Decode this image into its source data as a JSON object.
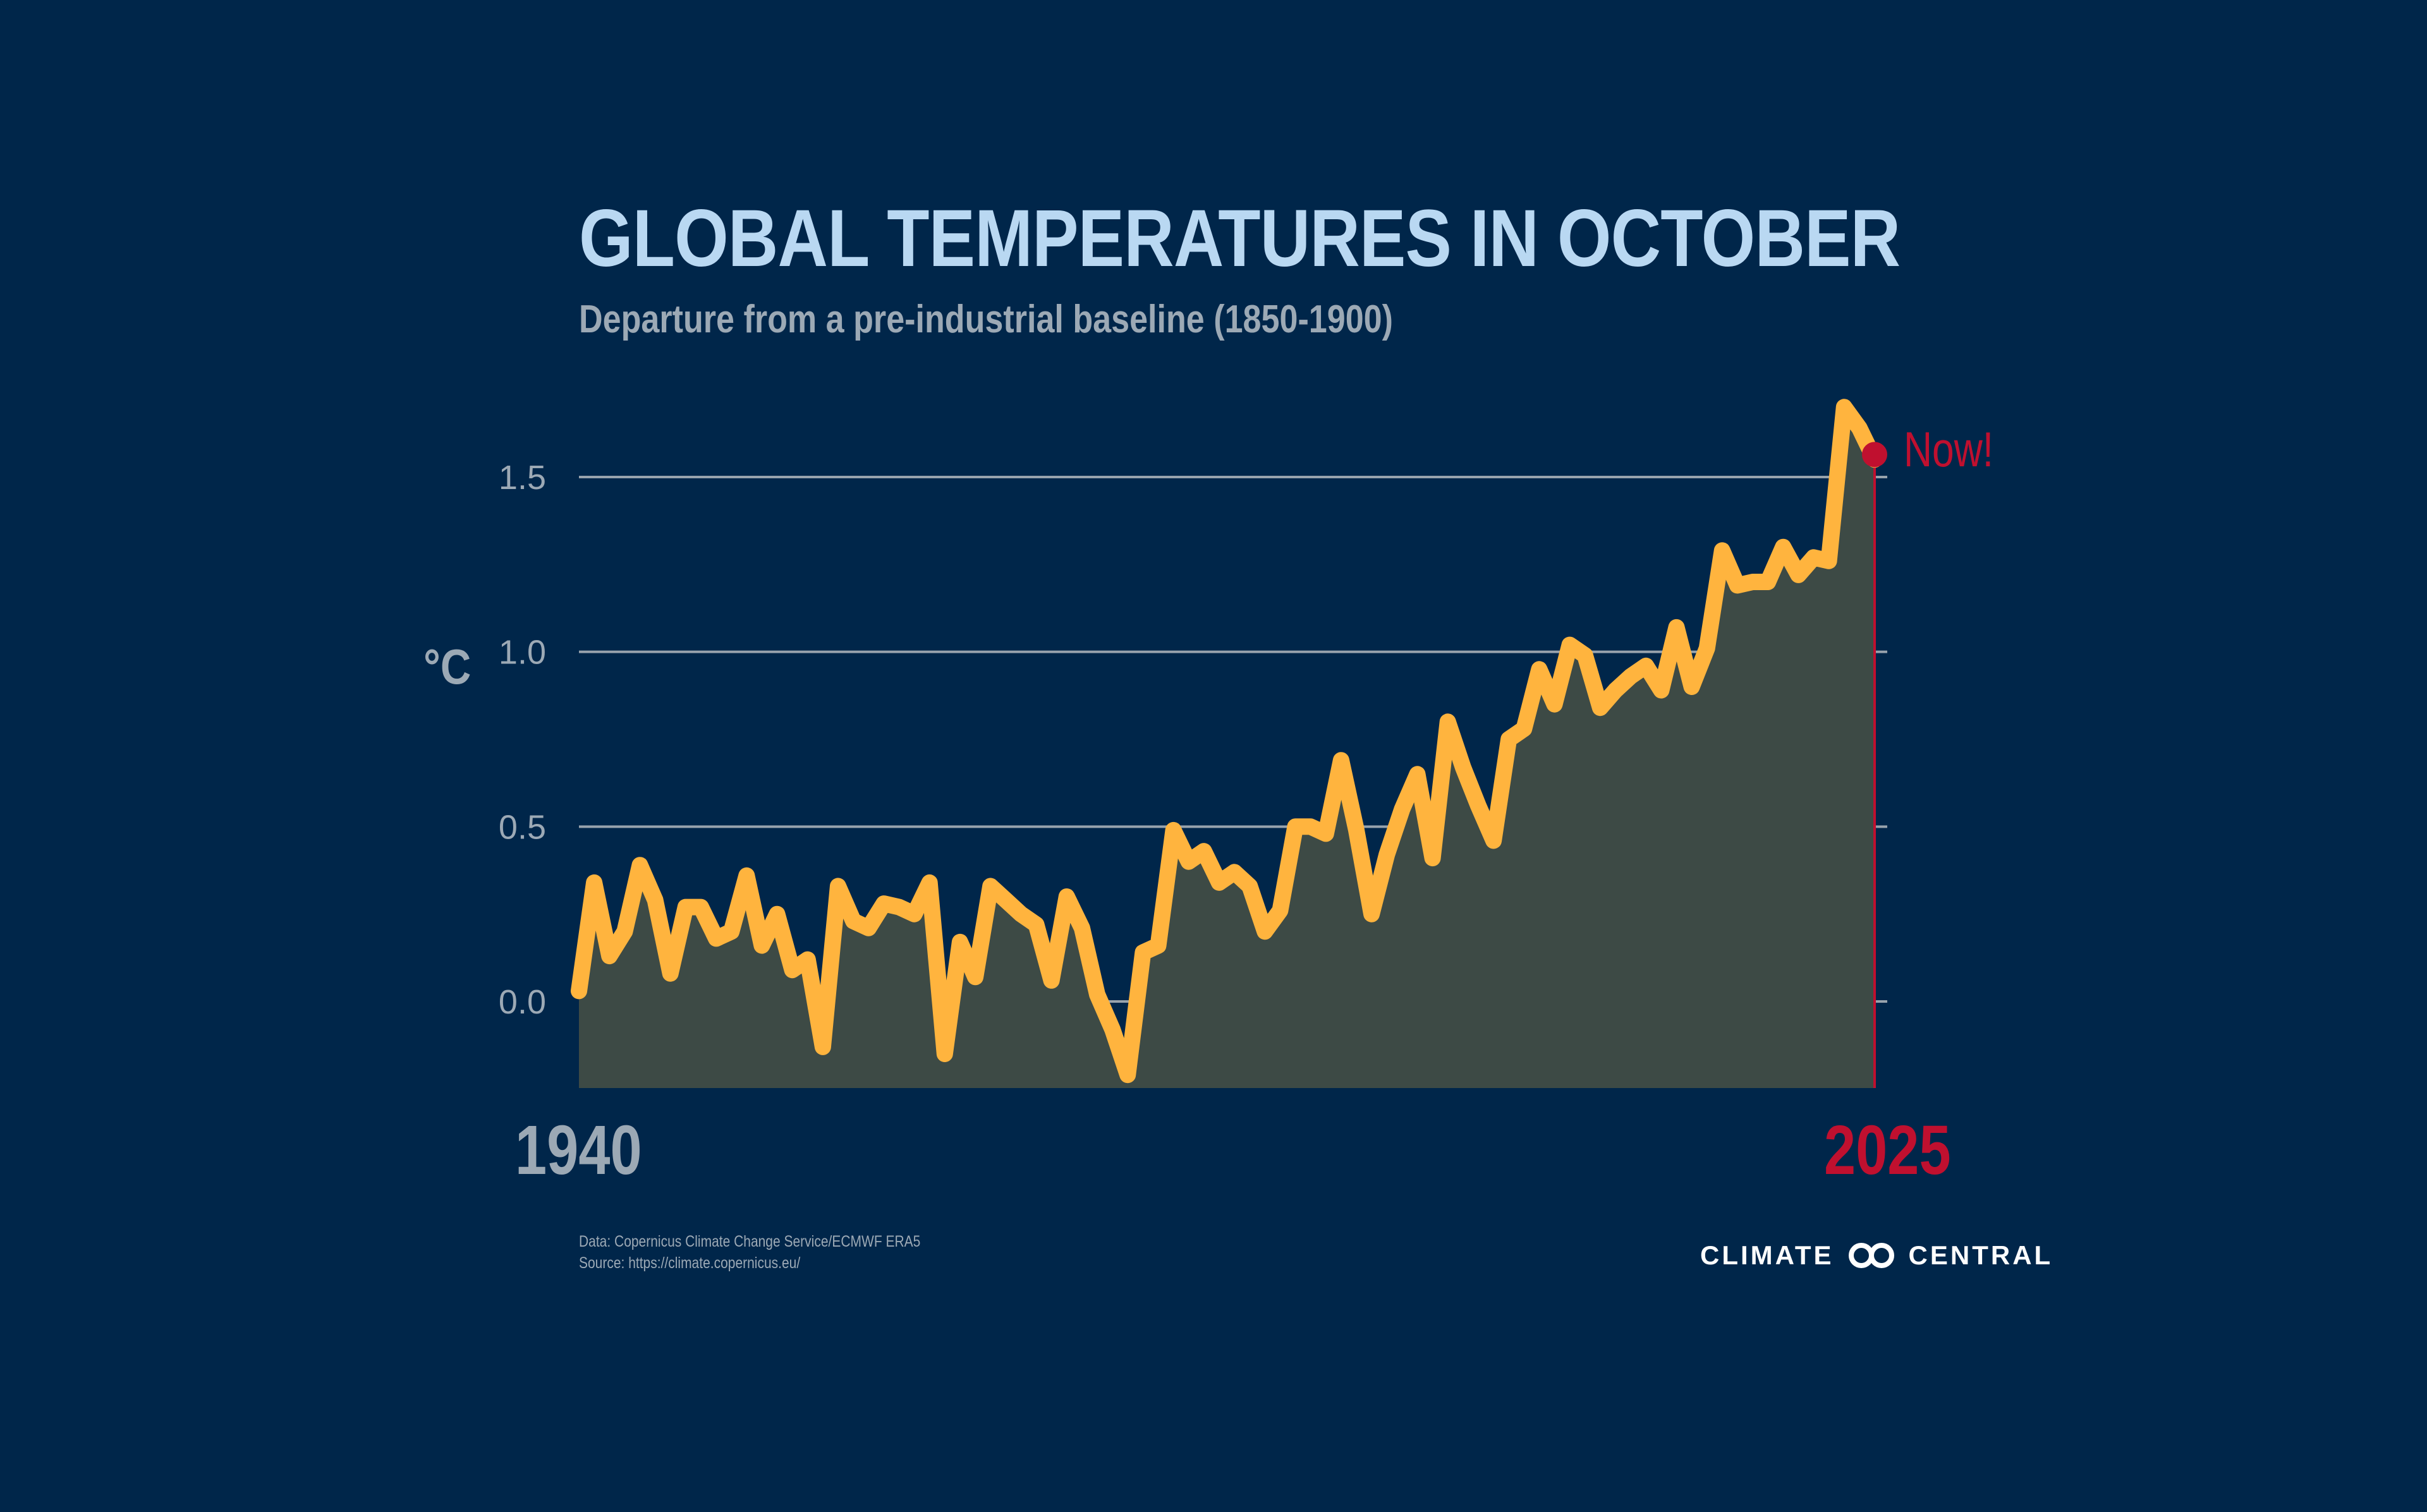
{
  "title": "GLOBAL TEMPERATURES IN OCTOBER",
  "subtitle": "Departure from a pre-industrial baseline (1850-1900)",
  "unit_label": "°C",
  "annotation": "Now!",
  "start_year_label": "1940",
  "end_year_label": "2025",
  "footer": {
    "line1": "Data: Copernicus Climate Change Service/ECMWF ERA5",
    "line2": "Source: https://climate.copernicus.eu/"
  },
  "logo": {
    "left_text": "CLIMATE",
    "right_text": "CENTRAL",
    "icon": "linked-rings-icon"
  },
  "colors": {
    "background": "#00264a",
    "area_fill": "#3d4a45",
    "line": "#ffb43e",
    "highlight": "#c0102f",
    "grid": "#98a3ad",
    "axis_text": "#9ca9b5",
    "title": "#b9d8f2"
  },
  "chart_data": {
    "type": "area",
    "title": "GLOBAL TEMPERATURES IN OCTOBER",
    "subtitle": "Departure from a pre-industrial baseline (1850-1900)",
    "xlabel": "",
    "ylabel": "°C",
    "x_start": 1940,
    "x_end": 2025,
    "y_ticks": [
      "0.0",
      "0.5",
      "1.0",
      "1.5"
    ],
    "ylim": [
      -0.25,
      1.75
    ],
    "grid": true,
    "x": [
      1940,
      1941,
      1942,
      1943,
      1944,
      1945,
      1946,
      1947,
      1948,
      1949,
      1950,
      1951,
      1952,
      1953,
      1954,
      1955,
      1956,
      1957,
      1958,
      1959,
      1960,
      1961,
      1962,
      1963,
      1964,
      1965,
      1966,
      1967,
      1968,
      1969,
      1970,
      1971,
      1972,
      1973,
      1974,
      1975,
      1976,
      1977,
      1978,
      1979,
      1980,
      1981,
      1982,
      1983,
      1984,
      1985,
      1986,
      1987,
      1988,
      1989,
      1990,
      1991,
      1992,
      1993,
      1994,
      1995,
      1996,
      1997,
      1998,
      1999,
      2000,
      2001,
      2002,
      2003,
      2004,
      2005,
      2006,
      2007,
      2008,
      2009,
      2010,
      2011,
      2012,
      2013,
      2014,
      2015,
      2016,
      2017,
      2018,
      2019,
      2020,
      2021,
      2022,
      2023,
      2024,
      2025
    ],
    "values": [
      0.03,
      0.34,
      0.13,
      0.2,
      0.39,
      0.29,
      0.08,
      0.27,
      0.27,
      0.18,
      0.2,
      0.36,
      0.16,
      0.25,
      0.09,
      0.12,
      -0.13,
      0.33,
      0.23,
      0.21,
      0.28,
      0.27,
      0.25,
      0.34,
      -0.15,
      0.17,
      0.07,
      0.33,
      0.29,
      0.25,
      0.22,
      0.06,
      0.3,
      0.21,
      0.02,
      -0.08,
      -0.21,
      0.14,
      0.16,
      0.49,
      0.4,
      0.43,
      0.34,
      0.37,
      0.33,
      0.2,
      0.26,
      0.5,
      0.5,
      0.48,
      0.69,
      0.49,
      0.25,
      0.42,
      0.55,
      0.65,
      0.41,
      0.8,
      0.67,
      0.56,
      0.46,
      0.75,
      0.78,
      0.95,
      0.85,
      1.02,
      0.99,
      0.84,
      0.89,
      0.93,
      0.96,
      0.89,
      1.07,
      0.9,
      1.01,
      1.29,
      1.19,
      1.2,
      1.2,
      1.3,
      1.22,
      1.27,
      1.26,
      1.7,
      1.64,
      1.55
    ]
  }
}
